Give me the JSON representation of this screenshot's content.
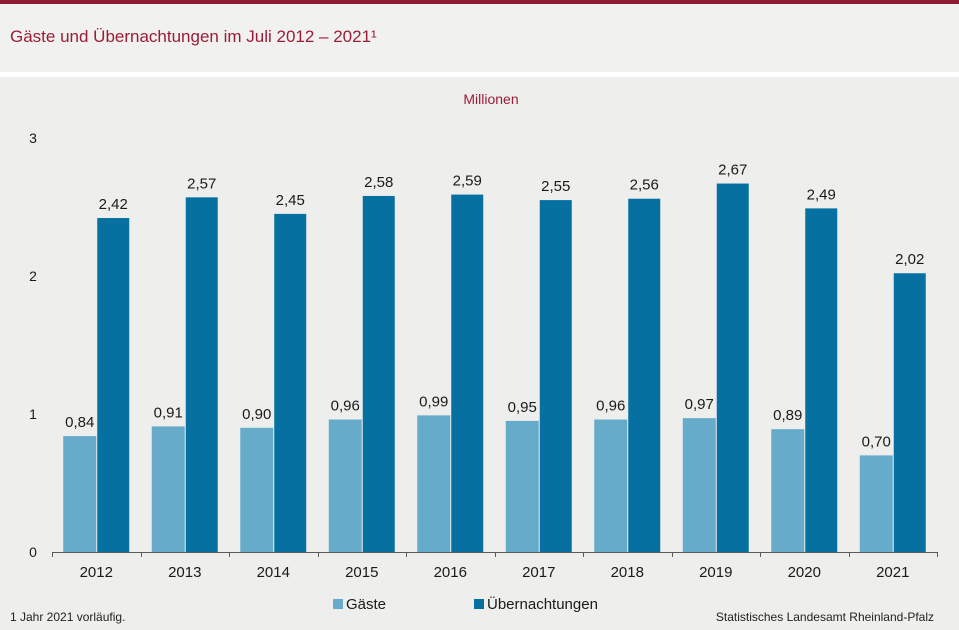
{
  "colors": {
    "accent": "#8b1d33",
    "guests": "#67abcb",
    "overnight_stays": "#0670a1"
  },
  "chart_data": {
    "type": "bar",
    "title": "Gäste und Übernachtungen im Juli 2012 – 2021¹",
    "xlabel": "",
    "ylabel": "Millionen",
    "categories": [
      "2012",
      "2013",
      "2014",
      "2015",
      "2016",
      "2017",
      "2018",
      "2019",
      "2020",
      "2021"
    ],
    "series": [
      {
        "name": "Gäste",
        "values": [
          0.84,
          0.91,
          0.9,
          0.96,
          0.99,
          0.95,
          0.96,
          0.97,
          0.89,
          0.7
        ],
        "labels": [
          "0,84",
          "0,91",
          "0,90",
          "0,96",
          "0,99",
          "0,95",
          "0,96",
          "0,97",
          "0,89",
          "0,70"
        ]
      },
      {
        "name": "Übernachtungen",
        "values": [
          2.42,
          2.57,
          2.45,
          2.58,
          2.59,
          2.55,
          2.56,
          2.67,
          2.49,
          2.02
        ],
        "labels": [
          "2,42",
          "2,57",
          "2,45",
          "2,58",
          "2,59",
          "2,55",
          "2,56",
          "2,67",
          "2,49",
          "2,02"
        ]
      }
    ],
    "ylim": [
      0,
      3
    ],
    "yticks": [
      0,
      1,
      2,
      3
    ],
    "grid": false,
    "legend": "bottom-center"
  },
  "footer": {
    "note": "1 Jahr 2021 vorläufig.",
    "source": "Statistisches Landesamt Rheinland-Pfalz"
  }
}
